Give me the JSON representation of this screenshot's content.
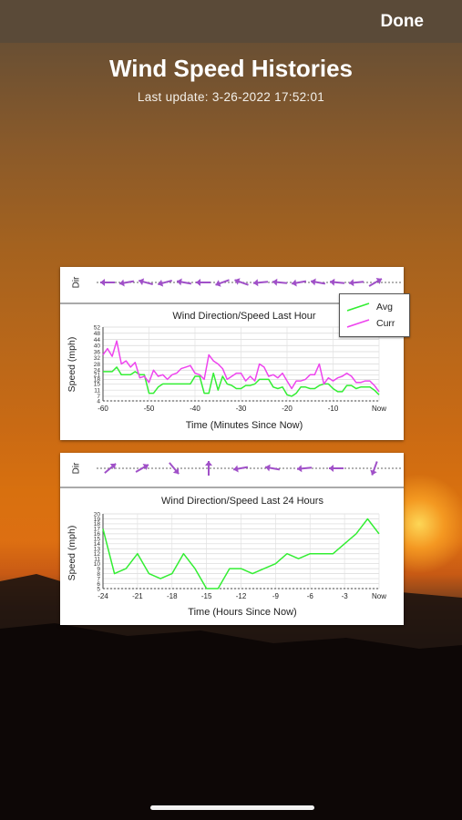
{
  "nav": {
    "done_label": "Done"
  },
  "header": {
    "title": "Wind Speed Histories",
    "last_update": "Last update: 3-26-2022 17:52:01"
  },
  "chart_data": [
    {
      "type": "line",
      "title": "Wind Direction/Speed Last Hour",
      "xlabel": "Time (Minutes Since Now)",
      "ylabel": "Speed (mph)",
      "dir_label": "Dir",
      "x_ticks": [
        "-60",
        "-50",
        "-40",
        "-30",
        "-20",
        "-10",
        "Now"
      ],
      "y_ticks": [
        "4",
        "7",
        "11",
        "15",
        "18",
        "21",
        "24",
        "28",
        "32",
        "36",
        "40",
        "44",
        "48",
        "52"
      ],
      "ylim": [
        4,
        52
      ],
      "xlim": [
        -60,
        0
      ],
      "grid": true,
      "legend_position": "top-right",
      "x": [
        -60,
        -59,
        -58,
        -57,
        -56,
        -55,
        -54,
        -53,
        -52,
        -51,
        -50,
        -49,
        -48,
        -47,
        -46,
        -45,
        -44,
        -43,
        -42,
        -41,
        -40,
        -39,
        -38,
        -37,
        -36,
        -35,
        -34,
        -33,
        -32,
        -31,
        -30,
        -29,
        -28,
        -27,
        -26,
        -25,
        -24,
        -23,
        -22,
        -21,
        -20,
        -19,
        -18,
        -17,
        -16,
        -15,
        -14,
        -13,
        -12,
        -11,
        -10,
        -9,
        -8,
        -7,
        -6,
        -5,
        -4,
        -3,
        -2,
        -1,
        0
      ],
      "series": [
        {
          "name": "Avg",
          "color": "#33ee33",
          "values": [
            23,
            23,
            23,
            26,
            21,
            21,
            21,
            23,
            21,
            21,
            9,
            9,
            13,
            15,
            15,
            15,
            15,
            15,
            15,
            15,
            20,
            20,
            9,
            9,
            22,
            11,
            20,
            15,
            14,
            12,
            12,
            14,
            14,
            15,
            18,
            18,
            18,
            13,
            12,
            13,
            8,
            7,
            9,
            13,
            13,
            12,
            12,
            14,
            15,
            15,
            12,
            10,
            10,
            14,
            14,
            12,
            13,
            13,
            13,
            11,
            8
          ]
        },
        {
          "name": "Curr",
          "color": "#ee44ee",
          "values": [
            34,
            38,
            33,
            43,
            28,
            30,
            26,
            29,
            19,
            20,
            16,
            24,
            20,
            21,
            18,
            21,
            22,
            25,
            26,
            27,
            22,
            21,
            18,
            34,
            30,
            28,
            25,
            18,
            20,
            22,
            22,
            17,
            20,
            17,
            28,
            26,
            20,
            21,
            19,
            22,
            17,
            12,
            17,
            17,
            18,
            21,
            21,
            28,
            15,
            19,
            17,
            19,
            20,
            22,
            20,
            16,
            16,
            17,
            17,
            14,
            10
          ]
        }
      ]
    },
    {
      "type": "line",
      "title": "Wind Direction/Speed Last 24 Hours",
      "xlabel": "Time (Hours Since Now)",
      "ylabel": "Speed (mph)",
      "dir_label": "Dir",
      "x_ticks": [
        "-24",
        "-21",
        "-18",
        "-15",
        "-12",
        "-9",
        "-6",
        "-3",
        "Now"
      ],
      "y_ticks": [
        "5",
        "6",
        "7",
        "8",
        "9",
        "10",
        "11",
        "12",
        "13",
        "14",
        "15",
        "16",
        "17",
        "18",
        "19",
        "20"
      ],
      "ylim": [
        5,
        20
      ],
      "xlim": [
        -24,
        0
      ],
      "grid": true,
      "x": [
        -24,
        -23,
        -22,
        -21,
        -20,
        -19,
        -18,
        -17,
        -16,
        -15,
        -14,
        -13,
        -12,
        -11,
        -10,
        -9,
        -8,
        -7,
        -6,
        -5,
        -4,
        -3,
        -2,
        -1,
        0
      ],
      "series": [
        {
          "color": "#33ee33",
          "values": [
            17,
            8,
            9,
            12,
            8,
            7,
            8,
            12,
            9,
            5,
            5,
            9,
            9,
            8,
            9,
            10,
            12,
            11,
            12,
            12,
            12,
            14,
            16,
            19,
            16
          ]
        }
      ]
    }
  ]
}
